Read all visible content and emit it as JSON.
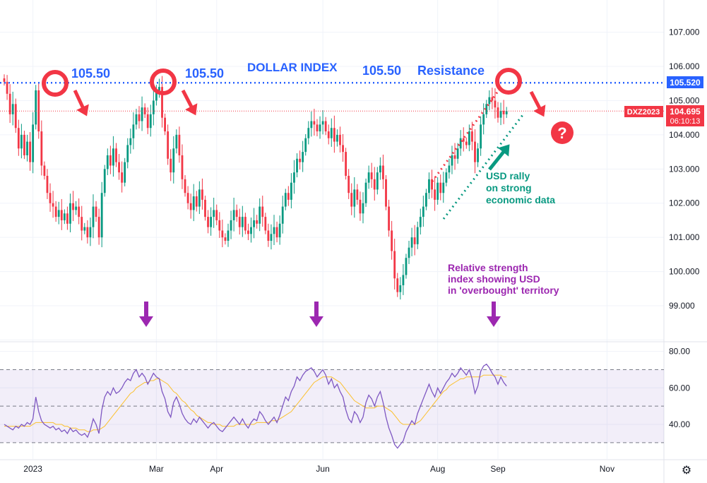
{
  "chart_data": {
    "type": "candlestick",
    "symbol_tag": "DXZ2023",
    "price_axis": {
      "ticks": [
        99.0,
        100.0,
        101.0,
        102.0,
        103.0,
        104.0,
        105.0,
        106.0,
        107.0
      ],
      "tick_labels": [
        "99.000",
        "100.000",
        "101.000",
        "102.000",
        "103.000",
        "104.000",
        "105.000",
        "106.000",
        "107.000"
      ],
      "range": [
        98.0,
        108.0
      ]
    },
    "rsi_axis": {
      "ticks": [
        40,
        60,
        80
      ],
      "tick_labels": [
        "40.00",
        "60.00",
        "80.00"
      ],
      "range": [
        25,
        82
      ],
      "overbought": 70,
      "oversold": 30,
      "midline": 50
    },
    "x_axis": {
      "labels": [
        "2023",
        "Mar",
        "Apr",
        "Jun",
        "Aug",
        "Sep",
        "Nov"
      ],
      "label_bars": [
        10,
        53,
        74,
        111,
        151,
        172,
        210
      ]
    },
    "last_price": 104.695,
    "last_price_label": "104.695",
    "countdown": "06:10:13",
    "resistance_level": 105.52,
    "resistance_label": "105.520",
    "ohlc_path": [
      105.55,
      105.2,
      104.6,
      104.9,
      104.2,
      103.6,
      104.0,
      103.4,
      103.8,
      103.2,
      104.3,
      105.3,
      104.1,
      103.1,
      102.8,
      102.3,
      102.0,
      101.9,
      101.6,
      101.8,
      101.5,
      101.7,
      101.4,
      102.0,
      101.8,
      101.9,
      101.6,
      101.2,
      101.3,
      101.0,
      101.3,
      101.9,
      101.6,
      101.0,
      102.3,
      103.0,
      103.4,
      103.1,
      103.6,
      103.2,
      102.9,
      102.6,
      103.2,
      103.7,
      103.9,
      104.3,
      104.6,
      104.4,
      104.8,
      104.6,
      104.2,
      104.6,
      105.0,
      105.3,
      105.4,
      104.5,
      104.1,
      103.3,
      102.9,
      103.6,
      104.0,
      103.4,
      102.7,
      102.3,
      102.0,
      101.8,
      102.2,
      101.9,
      102.4,
      102.1,
      101.6,
      101.3,
      101.6,
      101.8,
      101.5,
      101.2,
      101.0,
      100.9,
      101.2,
      101.5,
      101.8,
      101.6,
      101.3,
      101.6,
      101.2,
      101.1,
      101.3,
      101.5,
      101.4,
      101.9,
      101.6,
      101.2,
      100.9,
      101.1,
      101.3,
      101.0,
      101.4,
      101.9,
      102.3,
      102.1,
      102.6,
      102.9,
      103.3,
      103.2,
      103.5,
      103.9,
      104.2,
      104.4,
      104.3,
      104.1,
      104.3,
      104.4,
      104.1,
      103.9,
      104.2,
      103.8,
      104.0,
      103.7,
      103.5,
      102.8,
      102.3,
      101.9,
      102.4,
      102.1,
      101.7,
      102.0,
      102.6,
      102.9,
      102.7,
      102.4,
      102.9,
      103.1,
      102.7,
      101.9,
      101.2,
      100.6,
      99.8,
      99.4,
      99.6,
      99.9,
      100.4,
      100.7,
      101.0,
      100.8,
      101.3,
      101.6,
      101.9,
      102.3,
      102.7,
      102.4,
      102.1,
      102.6,
      102.3,
      102.6,
      102.9,
      103.1,
      103.4,
      103.3,
      103.6,
      103.9,
      103.8,
      103.7,
      104.1,
      103.8,
      103.2,
      103.6,
      104.3,
      104.6,
      104.9,
      105.1,
      105.0,
      104.8,
      104.5,
      104.7,
      104.6,
      104.695
    ],
    "rsi_values": [
      40,
      39,
      38,
      37,
      39,
      38,
      40,
      39,
      41,
      40,
      43,
      55,
      47,
      42,
      40,
      39,
      38,
      39,
      37,
      38,
      36,
      37,
      35,
      38,
      36,
      37,
      35,
      34,
      35,
      33,
      37,
      43,
      40,
      35,
      48,
      55,
      58,
      56,
      60,
      57,
      58,
      60,
      63,
      65,
      64,
      68,
      70,
      66,
      68,
      66,
      62,
      65,
      68,
      66,
      65,
      58,
      54,
      47,
      44,
      52,
      55,
      51,
      46,
      43,
      41,
      40,
      43,
      41,
      44,
      42,
      40,
      38,
      40,
      41,
      39,
      37,
      36,
      38,
      40,
      42,
      44,
      42,
      40,
      43,
      40,
      38,
      41,
      43,
      42,
      47,
      45,
      42,
      40,
      42,
      44,
      41,
      45,
      50,
      55,
      53,
      58,
      61,
      66,
      64,
      67,
      69,
      70,
      71,
      69,
      66,
      68,
      70,
      67,
      62,
      65,
      60,
      62,
      58,
      55,
      48,
      43,
      41,
      47,
      45,
      41,
      44,
      52,
      56,
      54,
      50,
      55,
      58,
      52,
      44,
      38,
      34,
      29,
      27,
      29,
      31,
      36,
      39,
      42,
      40,
      46,
      50,
      54,
      58,
      62,
      58,
      55,
      60,
      57,
      60,
      63,
      65,
      68,
      66,
      68,
      71,
      69,
      67,
      70,
      65,
      57,
      61,
      69,
      72,
      73,
      71,
      68,
      66,
      62,
      66,
      63,
      61
    ],
    "rsi_ma_values": [
      39,
      39,
      39,
      39,
      39,
      39,
      39,
      39,
      39,
      39,
      40,
      41,
      41,
      41,
      41,
      41,
      41,
      41,
      40,
      40,
      40,
      39,
      39,
      38,
      38,
      38,
      37,
      37,
      37,
      36,
      36,
      37,
      37,
      37,
      38,
      39,
      41,
      43,
      45,
      47,
      49,
      51,
      53,
      55,
      57,
      58,
      60,
      61,
      62,
      63,
      63,
      64,
      64,
      65,
      65,
      64,
      63,
      62,
      60,
      58,
      57,
      55,
      53,
      52,
      50,
      48,
      47,
      45,
      44,
      43,
      42,
      41,
      41,
      40,
      40,
      40,
      39,
      39,
      39,
      39,
      39,
      40,
      40,
      40,
      40,
      40,
      40,
      40,
      41,
      41,
      41,
      41,
      41,
      42,
      42,
      42,
      43,
      44,
      45,
      46,
      47,
      49,
      51,
      53,
      55,
      57,
      59,
      61,
      63,
      64,
      65,
      66,
      66,
      66,
      66,
      65,
      64,
      63,
      61,
      59,
      57,
      55,
      53,
      52,
      51,
      50,
      49,
      49,
      49,
      49,
      50,
      50,
      50,
      49,
      48,
      47,
      45,
      43,
      41,
      40,
      40,
      40,
      40,
      40,
      41,
      42,
      44,
      46,
      48,
      50,
      52,
      54,
      56,
      58,
      59,
      61,
      62,
      63,
      64,
      65,
      65,
      66,
      66,
      66,
      66,
      66,
      66,
      67,
      67,
      67,
      67,
      67,
      67,
      67,
      66,
      66
    ]
  },
  "annotations": {
    "title": "DOLLAR INDEX",
    "level_label_1": "105.50",
    "level_label_2": "105.50",
    "level_label_3": "105.50",
    "resistance_word": "Resistance",
    "usd_rally_lines": [
      "USD rally",
      "on strong",
      "economic data"
    ],
    "rsi_note_lines": [
      "Relative strength",
      "index showing USD",
      "in 'overbought' territory"
    ],
    "question_mark": "?",
    "colors": {
      "blue": "#2962ff",
      "red": "#f23645",
      "green": "#089981",
      "purple": "#9c27b0",
      "rsi_line": "#7e57c2",
      "rsi_ma": "#fbc02d",
      "price_line": "#f23645"
    }
  },
  "ui": {
    "settings_icon": "gear-icon"
  }
}
